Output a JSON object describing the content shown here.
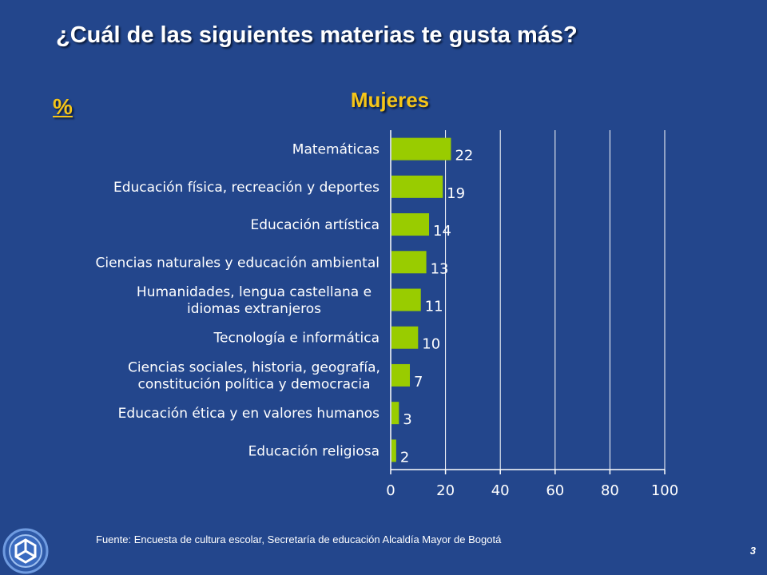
{
  "slide": {
    "title": "¿Cuál de las siguientes materias te gusta más?",
    "unit_label": "%",
    "source": "Fuente: Encuesta de cultura escolar, Secretaría de educación Alcaldía Mayor de Bogotá",
    "page_number": "3"
  },
  "colors": {
    "background": "#23468c",
    "bar": "#99cc00",
    "accent_text": "#f5c518",
    "gridline": "#ffffff"
  },
  "chart_data": {
    "type": "bar",
    "orientation": "horizontal",
    "title": "Mujeres",
    "categories": [
      [
        "Matemáticas"
      ],
      [
        "Educación física, recreación y deportes"
      ],
      [
        "Educación artística"
      ],
      [
        "Ciencias naturales y educación ambiental"
      ],
      [
        "Humanidades, lengua castellana e",
        "idiomas extranjeros"
      ],
      [
        "Tecnología e informática"
      ],
      [
        "Ciencias sociales, historia, geografía,",
        "constitución política y democracia"
      ],
      [
        "Educación ética y en valores humanos"
      ],
      [
        "Educación religiosa"
      ]
    ],
    "values": [
      22,
      19,
      14,
      13,
      11,
      10,
      7,
      3,
      2
    ],
    "xlim": [
      0,
      100
    ],
    "xticks": [
      0,
      20,
      40,
      60,
      80,
      100
    ],
    "grid": true
  }
}
